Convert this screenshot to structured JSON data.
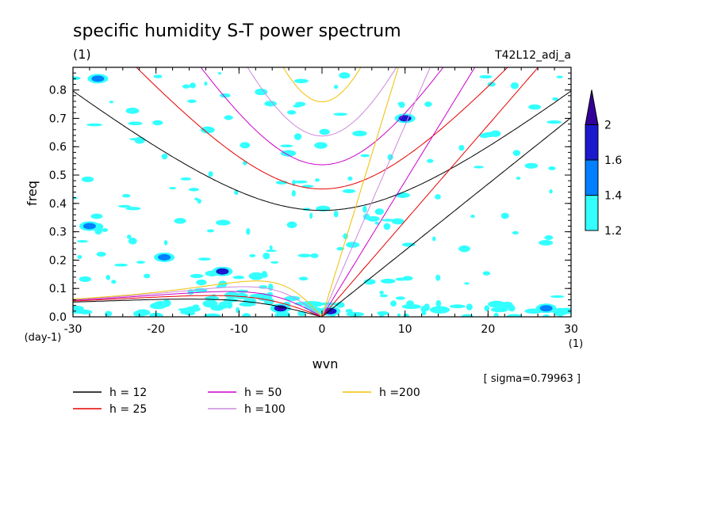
{
  "chart_data": {
    "type": "contour",
    "title": "specific humidity S-T power spectrum",
    "subtitle": "(1)",
    "run_label": "T42L12_adj_a",
    "xlabel": "wvn",
    "x_unit": "(1)",
    "ylabel": "freq",
    "y_unit": "(day-1)",
    "xlim": [
      -30,
      30
    ],
    "ylim": [
      0,
      0.88
    ],
    "x_ticks": [
      -30,
      -20,
      -10,
      0,
      10,
      20,
      30
    ],
    "y_ticks": [
      0.0,
      0.1,
      0.2,
      0.3,
      0.4,
      0.5,
      0.6,
      0.7,
      0.8
    ],
    "x_tick_labels": [
      "-30",
      "-20",
      "-10",
      "0",
      "10",
      "20",
      "30"
    ],
    "y_tick_labels": [
      "0.0",
      "0.1",
      "0.2",
      "0.3",
      "0.4",
      "0.5",
      "0.6",
      "0.7",
      "0.8"
    ],
    "sigma_label": "[ sigma=0.79963 ]",
    "colorbar": {
      "levels": [
        1.2,
        1.4,
        1.6,
        2
      ],
      "level_labels": [
        "1.2",
        "1.4",
        "1.6",
        "2"
      ],
      "colors": [
        "#33ffff",
        "#0080ff",
        "#1a1acc",
        "#330099"
      ]
    },
    "dispersion_curves": [
      {
        "name": "h = 12",
        "h": 12,
        "color": "#000000"
      },
      {
        "name": "h = 25",
        "h": 25,
        "color": "#e60000"
      },
      {
        "name": "h = 50",
        "h": 50,
        "color": "#cc00cc"
      },
      {
        "name": "h =100",
        "h": 100,
        "color": "#cc88dd"
      },
      {
        "name": "h =200",
        "h": 200,
        "color": "#f0c000"
      }
    ],
    "kelvin_endpoints_freq": [
      {
        "h": 12,
        "freq_at_wvn30": 0.7
      },
      {
        "h": 25,
        "freq_at_wvn19": 0.88
      },
      {
        "h": 50,
        "freq_at_wvn13.5": 0.88
      },
      {
        "h": 100,
        "freq_at_wvn10": 0.88
      },
      {
        "h": 200,
        "freq_at_wvn7.5": 0.88
      }
    ],
    "ig_min_freq": [
      {
        "h": 12,
        "wvn": -2.5,
        "freq": 0.37
      },
      {
        "h": 25,
        "wvn": -2.5,
        "freq": 0.44
      },
      {
        "h": 50,
        "wvn": -2.5,
        "freq": 0.53
      },
      {
        "h": 100,
        "wvn": -2,
        "freq": 0.63
      },
      {
        "h": 200,
        "wvn": -1.5,
        "freq": 0.75
      }
    ],
    "rossby_peak_freq": [
      {
        "h": 12,
        "wvn": -9,
        "freq": 0.063
      },
      {
        "h": 25,
        "wvn": -8,
        "freq": 0.08
      },
      {
        "h": 50,
        "wvn": -7,
        "freq": 0.095
      },
      {
        "h": 100,
        "wvn": -6,
        "freq": 0.11
      },
      {
        "h": 200,
        "wvn": -5,
        "freq": 0.125
      }
    ],
    "significant_blobs": [
      {
        "wvn": -5,
        "freq": 0.03,
        "level": 2
      },
      {
        "wvn": -12,
        "freq": 0.16,
        "level": 1.6
      },
      {
        "wvn": 10,
        "freq": 0.7,
        "level": 1.6
      },
      {
        "wvn": -27,
        "freq": 0.84,
        "level": 1.4
      },
      {
        "wvn": 27,
        "freq": 0.03,
        "level": 1.4
      },
      {
        "wvn": 1,
        "freq": 0.02,
        "level": 1.6
      },
      {
        "wvn": -19,
        "freq": 0.21,
        "level": 1.4
      },
      {
        "wvn": -28,
        "freq": 0.32,
        "level": 1.4
      }
    ]
  }
}
